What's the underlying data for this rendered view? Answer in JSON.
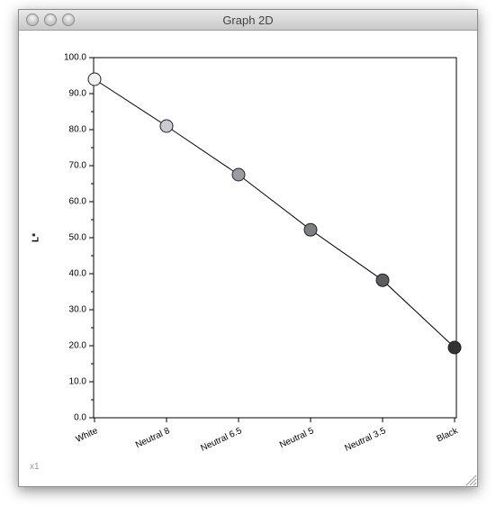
{
  "window": {
    "title": "Graph 2D",
    "footer": "x1"
  },
  "chart_data": {
    "type": "line",
    "y_label": "L*",
    "categories": [
      "White",
      "Neutral 8",
      "Neutral 6.5",
      "Neutral 5",
      "Neutral 3.5",
      "Black"
    ],
    "values": [
      94,
      81,
      67.5,
      52.2,
      38.2,
      19.5
    ],
    "color": "#000000",
    "colors": [
      "#f2f2f2",
      "#c9cbd0",
      "#9a9ca1",
      "#7e7f82",
      "#5d5d5f",
      "#333333"
    ],
    "ylim": [
      0,
      100
    ],
    "yticks": [
      {
        "value": 0,
        "label": "0.0"
      },
      {
        "value": 10,
        "label": "10.0"
      },
      {
        "value": 20,
        "label": "20.0"
      },
      {
        "value": 30,
        "label": "30.0"
      },
      {
        "value": 40,
        "label": "40.0"
      },
      {
        "value": 50,
        "label": "50.0"
      },
      {
        "value": 60,
        "label": "60.0"
      },
      {
        "value": 70,
        "label": "70.0"
      },
      {
        "value": 80,
        "label": "80.0"
      },
      {
        "value": 90,
        "label": "90.0"
      },
      {
        "value": 100,
        "label": "100.0"
      }
    ],
    "grid": false
  }
}
